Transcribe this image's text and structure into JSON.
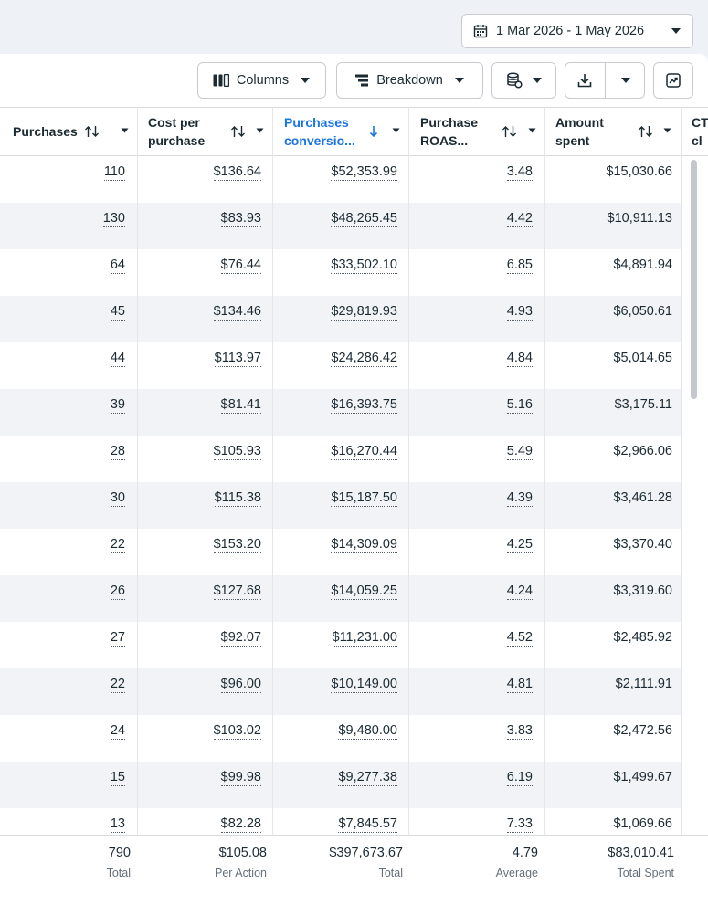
{
  "date_range": {
    "label": "1 Mar 2026 - 1 May 2026"
  },
  "toolbar": {
    "columns_label": "Columns",
    "breakdown_label": "Breakdown"
  },
  "headers": {
    "purchases": "Purchases",
    "cost_per_purchase_1": "Cost per",
    "cost_per_purchase_2": "purchase",
    "purchases_conversion_1": "Purchases",
    "purchases_conversion_2": "conversio...",
    "purchase_roas_1": "Purchase",
    "purchase_roas_2": "ROAS...",
    "amount_spent_1": "Amount",
    "amount_spent_2": "spent",
    "ctr_1": "CT",
    "ctr_2": "cl"
  },
  "rows": [
    {
      "purchases": "110",
      "cost": "$136.64",
      "conversion": "$52,353.99",
      "roas": "3.48",
      "spent": "$15,030.66"
    },
    {
      "purchases": "130",
      "cost": "$83.93",
      "conversion": "$48,265.45",
      "roas": "4.42",
      "spent": "$10,911.13"
    },
    {
      "purchases": "64",
      "cost": "$76.44",
      "conversion": "$33,502.10",
      "roas": "6.85",
      "spent": "$4,891.94"
    },
    {
      "purchases": "45",
      "cost": "$134.46",
      "conversion": "$29,819.93",
      "roas": "4.93",
      "spent": "$6,050.61"
    },
    {
      "purchases": "44",
      "cost": "$113.97",
      "conversion": "$24,286.42",
      "roas": "4.84",
      "spent": "$5,014.65"
    },
    {
      "purchases": "39",
      "cost": "$81.41",
      "conversion": "$16,393.75",
      "roas": "5.16",
      "spent": "$3,175.11"
    },
    {
      "purchases": "28",
      "cost": "$105.93",
      "conversion": "$16,270.44",
      "roas": "5.49",
      "spent": "$2,966.06"
    },
    {
      "purchases": "30",
      "cost": "$115.38",
      "conversion": "$15,187.50",
      "roas": "4.39",
      "spent": "$3,461.28"
    },
    {
      "purchases": "22",
      "cost": "$153.20",
      "conversion": "$14,309.09",
      "roas": "4.25",
      "spent": "$3,370.40"
    },
    {
      "purchases": "26",
      "cost": "$127.68",
      "conversion": "$14,059.25",
      "roas": "4.24",
      "spent": "$3,319.60"
    },
    {
      "purchases": "27",
      "cost": "$92.07",
      "conversion": "$11,231.00",
      "roas": "4.52",
      "spent": "$2,485.92"
    },
    {
      "purchases": "22",
      "cost": "$96.00",
      "conversion": "$10,149.00",
      "roas": "4.81",
      "spent": "$2,111.91"
    },
    {
      "purchases": "24",
      "cost": "$103.02",
      "conversion": "$9,480.00",
      "roas": "3.83",
      "spent": "$2,472.56"
    },
    {
      "purchases": "15",
      "cost": "$99.98",
      "conversion": "$9,277.38",
      "roas": "6.19",
      "spent": "$1,499.67"
    },
    {
      "purchases": "13",
      "cost": "$82.28",
      "conversion": "$7,845.57",
      "roas": "7.33",
      "spent": "$1,069.66"
    }
  ],
  "totals": {
    "purchases": "790",
    "purchases_label": "Total",
    "cost": "$105.08",
    "cost_label": "Per Action",
    "conversion": "$397,673.67",
    "conversion_label": "Total",
    "roas": "4.79",
    "roas_label": "Average",
    "spent": "$83,010.41",
    "spent_label": "Total Spent"
  },
  "icons": {
    "date": "calendar-icon",
    "columns": "columns-icon",
    "breakdown": "breakdown-icon",
    "database": "database-icon",
    "download": "download-icon",
    "chart": "chart-icon"
  },
  "colors": {
    "accent": "#1b74e4",
    "text": "#1c2b33",
    "alt_row": "#f1f3f7"
  }
}
